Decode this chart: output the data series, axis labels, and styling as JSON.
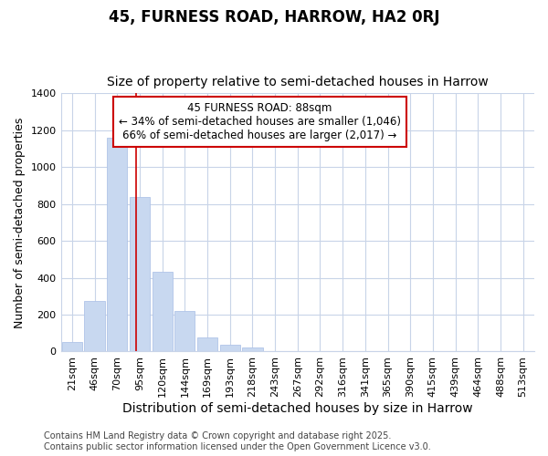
{
  "title": "45, FURNESS ROAD, HARROW, HA2 0RJ",
  "subtitle": "Size of property relative to semi-detached houses in Harrow",
  "xlabel": "Distribution of semi-detached houses by size in Harrow",
  "ylabel": "Number of semi-detached properties",
  "bar_labels": [
    "21sqm",
    "46sqm",
    "70sqm",
    "95sqm",
    "120sqm",
    "144sqm",
    "169sqm",
    "193sqm",
    "218sqm",
    "243sqm",
    "267sqm",
    "292sqm",
    "316sqm",
    "341sqm",
    "365sqm",
    "390sqm",
    "415sqm",
    "439sqm",
    "464sqm",
    "488sqm",
    "513sqm"
  ],
  "bar_values": [
    50,
    275,
    1160,
    840,
    430,
    220,
    75,
    35,
    20,
    0,
    0,
    0,
    0,
    0,
    0,
    0,
    0,
    0,
    0,
    0,
    0
  ],
  "bar_color": "#c8d8f0",
  "bar_edgecolor": "#b0c4e8",
  "vline_x": 2.85,
  "vline_color": "#cc0000",
  "annotation_text": "45 FURNESS ROAD: 88sqm\n← 34% of semi-detached houses are smaller (1,046)\n66% of semi-detached houses are larger (2,017) →",
  "annotation_box_facecolor": "#ffffff",
  "annotation_box_edgecolor": "#cc0000",
  "ylim": [
    0,
    1400
  ],
  "yticks": [
    0,
    200,
    400,
    600,
    800,
    1000,
    1200,
    1400
  ],
  "fig_bg_color": "#ffffff",
  "plot_bg_color": "#ffffff",
  "grid_color": "#c8d4e8",
  "footer_text": "Contains HM Land Registry data © Crown copyright and database right 2025.\nContains public sector information licensed under the Open Government Licence v3.0.",
  "title_fontsize": 12,
  "subtitle_fontsize": 10,
  "xlabel_fontsize": 10,
  "ylabel_fontsize": 9,
  "tick_fontsize": 8,
  "annotation_fontsize": 8.5,
  "footer_fontsize": 7
}
